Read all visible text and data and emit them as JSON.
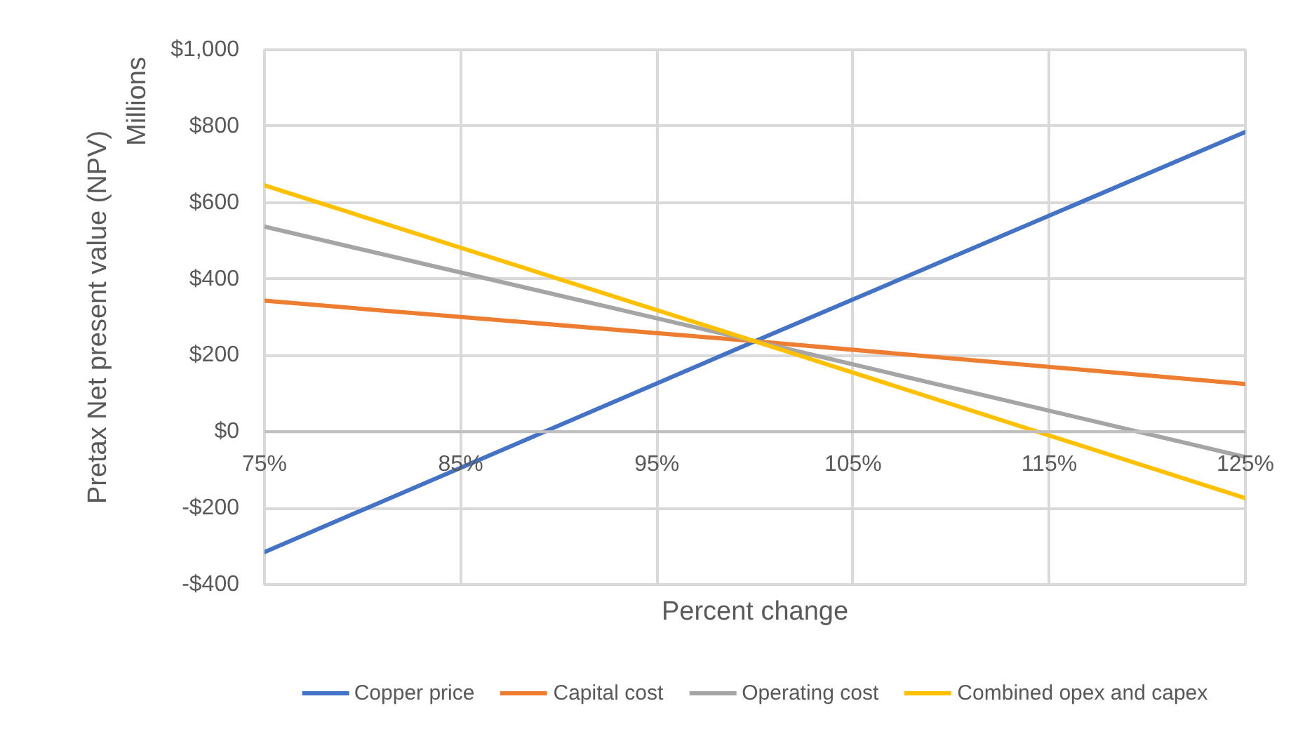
{
  "chart_data": {
    "type": "line",
    "xlabel": "Percent change",
    "ylabel": "Pretax Net present value (NPV)",
    "annotations": [
      "Millions"
    ],
    "x": [
      75,
      100,
      125
    ],
    "series": [
      {
        "name": "Copper price",
        "color": "#4472c4",
        "values": [
          -315,
          237,
          785
        ]
      },
      {
        "name": "Capital cost",
        "color": "#ed7d31",
        "values": [
          343,
          237,
          125
        ]
      },
      {
        "name": "Operating cost",
        "color": "#a5a5a5",
        "values": [
          537,
          237,
          -66
        ]
      },
      {
        "name": "Combined opex and capex",
        "color": "#ffc000",
        "values": [
          645,
          237,
          -174
        ]
      }
    ],
    "xlim": [
      75,
      125
    ],
    "xticks": [
      {
        "value": 75,
        "label": "75%"
      },
      {
        "value": 85,
        "label": "85%"
      },
      {
        "value": 95,
        "label": "95%"
      },
      {
        "value": 105,
        "label": "105%"
      },
      {
        "value": 115,
        "label": "115%"
      },
      {
        "value": 125,
        "label": "125%"
      }
    ],
    "ylim": [
      -400,
      1000
    ],
    "yticks": [
      {
        "value": -400,
        "label": "-$400"
      },
      {
        "value": -200,
        "label": "-$200"
      },
      {
        "value": 0,
        "label": "$0"
      },
      {
        "value": 200,
        "label": "$200"
      },
      {
        "value": 400,
        "label": "$400"
      },
      {
        "value": 600,
        "label": "$600"
      },
      {
        "value": 800,
        "label": "$800"
      },
      {
        "value": 1000,
        "label": "$1,000"
      }
    ],
    "grid": true,
    "legend": "bottom",
    "line_style": "solid"
  }
}
